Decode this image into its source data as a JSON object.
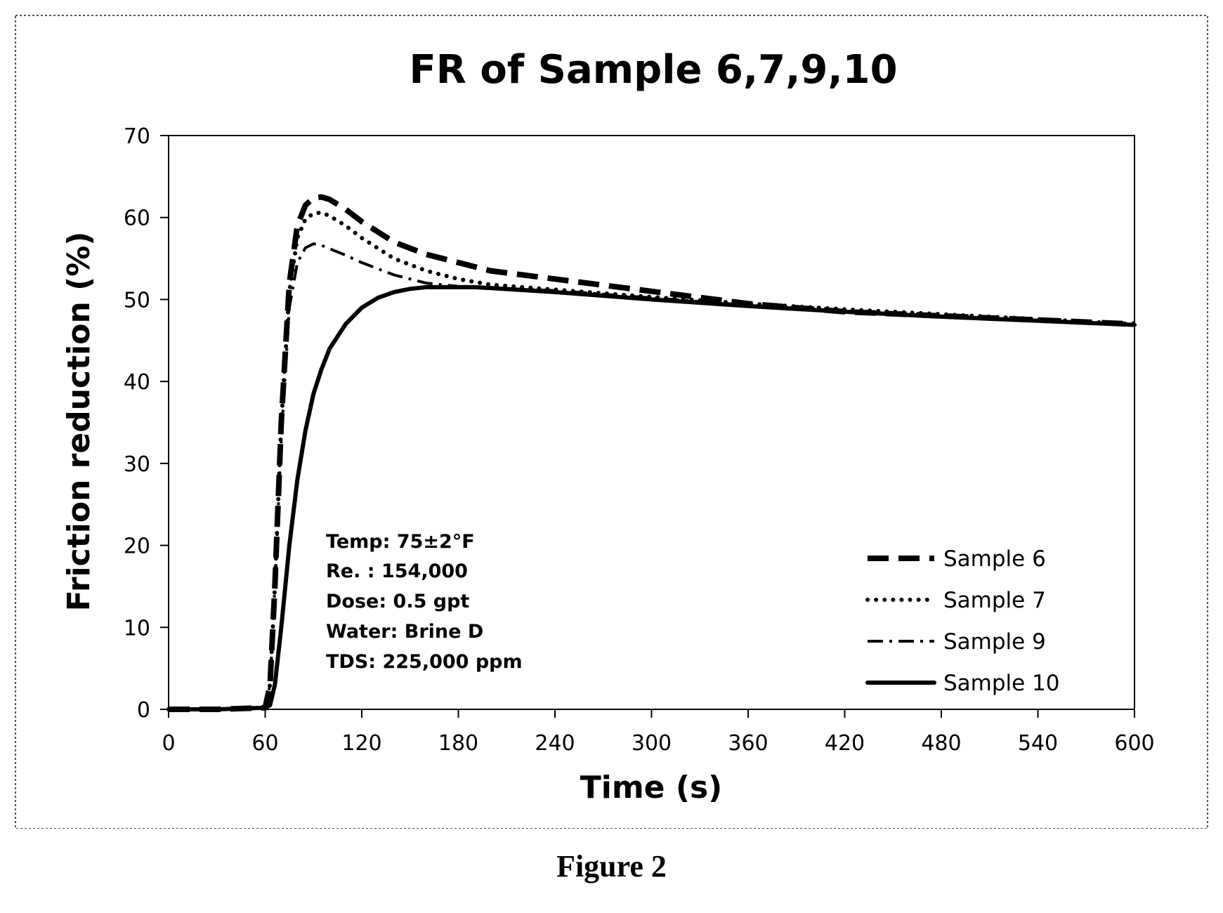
{
  "figure_caption": "Figure 2",
  "chart_data": {
    "type": "line",
    "title": "FR of Sample 6,7,9,10",
    "xlabel": "Time (s)",
    "ylabel": "Friction reduction (%)",
    "xlim": [
      0,
      600
    ],
    "ylim": [
      0,
      70
    ],
    "xticks": [
      0,
      60,
      120,
      180,
      240,
      300,
      360,
      420,
      480,
      540,
      600
    ],
    "yticks": [
      0,
      10,
      20,
      30,
      40,
      50,
      60,
      70
    ],
    "grid": false,
    "legend_position": "lower-right",
    "annotations": [
      "Temp: 75±2°F",
      "Re. : 154,000",
      "Dose: 0.5 gpt",
      "Water: Brine D",
      "TDS: 225,000 ppm"
    ],
    "series": [
      {
        "name": "Sample 6",
        "style": "long-dash",
        "color": "#000000",
        "x": [
          0,
          30,
          60,
          63,
          66,
          70,
          75,
          80,
          85,
          90,
          95,
          100,
          110,
          120,
          140,
          160,
          180,
          200,
          240,
          300,
          360,
          420,
          480,
          540,
          600
        ],
        "y": [
          0,
          0,
          0.2,
          3,
          15,
          35,
          52,
          59,
          61.5,
          62.4,
          62.5,
          62.2,
          61,
          59.5,
          57,
          55.5,
          54.5,
          53.5,
          52.5,
          51,
          49.5,
          48.5,
          48,
          47.5,
          47
        ]
      },
      {
        "name": "Sample 7",
        "style": "dotted",
        "color": "#000000",
        "x": [
          0,
          30,
          60,
          63,
          66,
          70,
          75,
          80,
          85,
          90,
          95,
          100,
          110,
          120,
          140,
          160,
          180,
          200,
          240,
          300,
          360,
          420,
          480,
          540,
          600
        ],
        "y": [
          0,
          0,
          0.2,
          3,
          15,
          35,
          51,
          57.5,
          59.8,
          60.5,
          60.6,
          60.2,
          59,
          57.5,
          55,
          53.5,
          52.5,
          51.8,
          51.2,
          50.3,
          49.5,
          48.8,
          48.2,
          47.6,
          47
        ]
      },
      {
        "name": "Sample 9",
        "style": "dash-dot",
        "color": "#000000",
        "x": [
          0,
          30,
          60,
          63,
          66,
          70,
          75,
          80,
          85,
          90,
          95,
          100,
          110,
          120,
          140,
          160,
          180,
          200,
          240,
          300,
          360,
          420,
          480,
          540,
          600
        ],
        "y": [
          0,
          0,
          0.2,
          3,
          15,
          33,
          49,
          54.5,
          56.3,
          56.8,
          56.6,
          56.2,
          55.4,
          54.5,
          53,
          52,
          51.6,
          51.4,
          51.1,
          50.2,
          49.3,
          48.6,
          48,
          47.4,
          46.9
        ]
      },
      {
        "name": "Sample 10",
        "style": "solid",
        "color": "#000000",
        "x": [
          0,
          30,
          60,
          63,
          66,
          70,
          75,
          80,
          85,
          90,
          95,
          100,
          110,
          120,
          130,
          140,
          150,
          160,
          170,
          180,
          190,
          200,
          240,
          300,
          360,
          420,
          480,
          540,
          600
        ],
        "y": [
          0,
          0,
          0.2,
          0.5,
          3,
          10,
          20,
          28,
          34,
          38.5,
          41.5,
          44,
          47,
          49,
          50.2,
          50.9,
          51.3,
          51.5,
          51.5,
          51.5,
          51.5,
          51.4,
          50.9,
          50,
          49.2,
          48.5,
          47.9,
          47.4,
          46.9
        ]
      }
    ]
  }
}
